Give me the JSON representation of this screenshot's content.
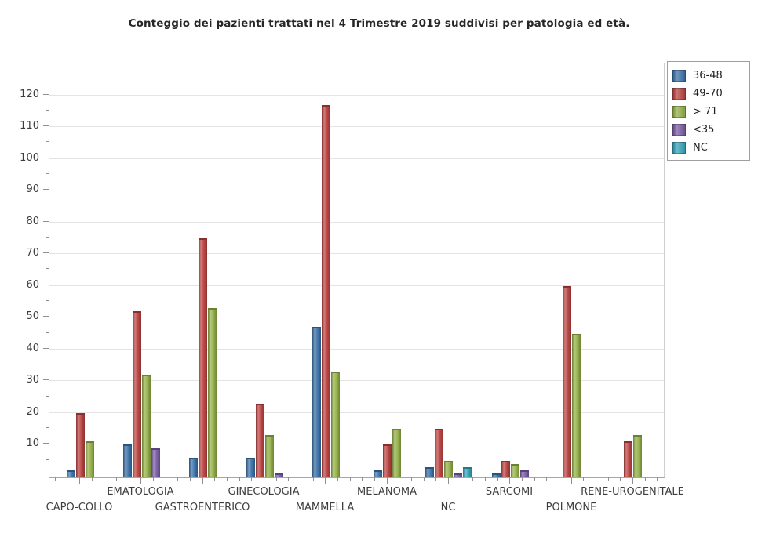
{
  "title": "Conteggio dei pazienti trattati nel 4 Trimestre 2019 suddivisi per patologia ed età.",
  "chart_data": {
    "type": "bar",
    "title": "Conteggio dei pazienti trattati nel 4 Trimestre 2019 suddivisi per patologia ed età.",
    "xlabel": "",
    "ylabel": "",
    "categories": [
      "CAPO-COLLO",
      "EMATOLOGIA",
      "GASTROENTERICO",
      "GINECOLOGIA",
      "MAMMELLA",
      "MELANOMA",
      "NC",
      "SARCOMI",
      "POLMONE",
      "RENE-UROGENITALE"
    ],
    "series": [
      {
        "name": "36-48",
        "color": "#3e74ab",
        "values": [
          2,
          10,
          6,
          6,
          47,
          2,
          3,
          1,
          0,
          0
        ]
      },
      {
        "name": "49-70",
        "color": "#bb4442",
        "values": [
          20,
          52,
          75,
          23,
          117,
          10,
          15,
          5,
          60,
          11
        ]
      },
      {
        "name": "> 71",
        "color": "#96b24a",
        "values": [
          11,
          32,
          53,
          13,
          33,
          15,
          5,
          4,
          45,
          13
        ]
      },
      {
        "name": "<35",
        "color": "#7b5ea7",
        "values": [
          0,
          9,
          0,
          1,
          0,
          0,
          1,
          2,
          0,
          0
        ]
      },
      {
        "name": "NC",
        "color": "#38a6bc",
        "values": [
          0,
          0,
          0,
          0,
          0,
          0,
          3,
          0,
          0,
          0
        ]
      }
    ],
    "ylim": [
      0,
      130
    ],
    "ytick_major_step": 10,
    "ytick_minor_step": 5,
    "ytick_labels": [
      10,
      20,
      30,
      40,
      50,
      60,
      70,
      80,
      90,
      100,
      110,
      120
    ],
    "grid": "horizontal",
    "legend_position": "top-right",
    "axis_color": "#a6a6a6",
    "gridline_color": "#e4e4e4",
    "category_label_rows": "staggered"
  }
}
